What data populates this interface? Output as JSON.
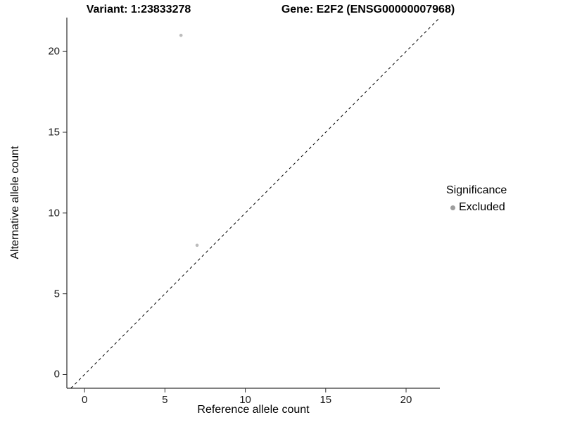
{
  "header": {
    "variant_title": "Variant: 1:23833278",
    "gene_title": "Gene: E2F2 (ENSG00000007968)"
  },
  "chart_data": {
    "type": "scatter",
    "xlabel": "Reference allele count",
    "ylabel": "Alternative allele count",
    "xlim": [
      -1.1,
      22.1
    ],
    "ylim": [
      -0.85,
      22.1
    ],
    "x_ticks": [
      0,
      5,
      10,
      15,
      20
    ],
    "y_ticks": [
      0,
      5,
      10,
      15,
      20
    ],
    "grid": false,
    "identity_line": {
      "style": "dashed",
      "color": "#000000",
      "slope": 1,
      "intercept": 0
    },
    "series": [
      {
        "name": "Excluded",
        "color": "#b5b5b5",
        "points": [
          {
            "x": 6,
            "y": 21
          },
          {
            "x": 7,
            "y": 8
          }
        ]
      }
    ],
    "legend": {
      "title": "Significance",
      "position": "right",
      "entries": [
        {
          "label": "Excluded",
          "color": "#9d9d9d"
        }
      ]
    },
    "colors": {
      "axis": "#000000",
      "tick": "#333333",
      "background": "#ffffff"
    }
  }
}
